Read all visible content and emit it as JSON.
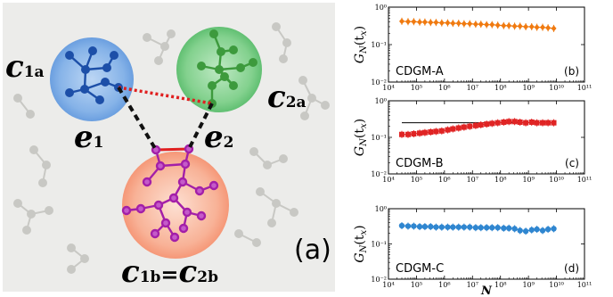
{
  "diagram": {
    "panel_label": "(a)",
    "clusters": {
      "c1a": {
        "base": "c",
        "sub": "1a",
        "color": "#5b9ee0"
      },
      "c2a": {
        "base": "c",
        "sub": "2a",
        "color": "#4cc46a"
      },
      "c1b2b": {
        "base1": "c",
        "sub1": "1b",
        "eq": "=",
        "base2": "c",
        "sub2": "2b",
        "color": "#f4896a"
      }
    },
    "edges": {
      "e1": {
        "base": "e",
        "sub": "1"
      },
      "e2": {
        "base": "e",
        "sub": "2"
      }
    },
    "colors": {
      "blue_node": "#1d4fa8",
      "green_node": "#3d9a3d",
      "purple_node": "#a31fa8",
      "red_link": "#e02020",
      "gray_node": "#c8c8c4",
      "panel_bg": "#ececea"
    }
  },
  "chart_data": [
    {
      "type": "line",
      "title": "CDGM-A",
      "panel_label": "(b)",
      "ylabel_main": "G",
      "ylabel_sub": "N",
      "ylabel_arg": "(t",
      "ylabel_argsub": "x",
      "ylabel_close": ")",
      "xlabel": "",
      "yscale": "log",
      "xscale": "log",
      "xlim": [
        10000.0,
        100000000000.0
      ],
      "ylim": [
        0.01,
        1
      ],
      "color": "#f07a10",
      "marker": "diamond",
      "x": [
        30000.0,
        50000.0,
        80000.0,
        130000.0,
        200000.0,
        320000.0,
        500000.0,
        800000.0,
        1300000.0,
        2000000.0,
        3200000.0,
        5000000.0,
        8000000.0,
        13000000.0,
        20000000.0,
        32000000.0,
        50000000.0,
        80000000.0,
        130000000.0,
        200000000.0,
        320000000.0,
        500000000.0,
        800000000.0,
        1300000000.0,
        2000000000.0,
        3200000000.0,
        5000000000.0,
        8000000000.0
      ],
      "y": [
        0.42,
        0.41,
        0.41,
        0.4,
        0.4,
        0.39,
        0.39,
        0.38,
        0.38,
        0.37,
        0.37,
        0.36,
        0.36,
        0.35,
        0.35,
        0.34,
        0.34,
        0.33,
        0.32,
        0.32,
        0.31,
        0.31,
        0.3,
        0.3,
        0.29,
        0.29,
        0.28,
        0.27
      ],
      "reference_line": null,
      "yticks": [
        "10⁰",
        "10⁻¹",
        "10⁻²"
      ],
      "xticks": [
        "10⁴",
        "10⁵",
        "10⁶",
        "10⁷",
        "10⁸",
        "10⁹",
        "10¹⁰",
        "10¹¹"
      ]
    },
    {
      "type": "line",
      "title": "CDGM-B",
      "panel_label": "(c)",
      "ylabel_main": "G",
      "ylabel_sub": "N",
      "ylabel_arg": "(t",
      "ylabel_argsub": "x",
      "ylabel_close": ")",
      "xlabel": "",
      "yscale": "log",
      "xscale": "log",
      "xlim": [
        10000.0,
        100000000000.0
      ],
      "ylim": [
        0.01,
        1
      ],
      "color": "#e02424",
      "marker": "square",
      "x": [
        30000.0,
        50000.0,
        80000.0,
        130000.0,
        200000.0,
        320000.0,
        500000.0,
        800000.0,
        1300000.0,
        2000000.0,
        3200000.0,
        5000000.0,
        8000000.0,
        13000000.0,
        20000000.0,
        32000000.0,
        50000000.0,
        80000000.0,
        130000000.0,
        200000000.0,
        320000000.0,
        500000000.0,
        800000000.0,
        1300000000.0,
        2000000000.0,
        3200000000.0,
        5000000000.0,
        8000000000.0
      ],
      "y": [
        0.12,
        0.12,
        0.125,
        0.13,
        0.135,
        0.14,
        0.145,
        0.15,
        0.16,
        0.17,
        0.18,
        0.19,
        0.2,
        0.21,
        0.22,
        0.23,
        0.24,
        0.25,
        0.26,
        0.27,
        0.27,
        0.26,
        0.25,
        0.26,
        0.25,
        0.25,
        0.25,
        0.25
      ],
      "reference_line": 0.25,
      "yticks": [
        "10⁰",
        "10⁻¹",
        "10⁻²"
      ],
      "xticks": [
        "10⁴",
        "10⁵",
        "10⁶",
        "10⁷",
        "10⁸",
        "10⁹",
        "10¹⁰",
        "10¹¹"
      ]
    },
    {
      "type": "line",
      "title": "CDGM-C",
      "panel_label": "(d)",
      "ylabel_main": "G",
      "ylabel_sub": "N",
      "ylabel_arg": "(t",
      "ylabel_argsub": "x",
      "ylabel_close": ")",
      "xlabel": "N",
      "yscale": "log",
      "xscale": "log",
      "xlim": [
        10000.0,
        100000000000.0
      ],
      "ylim": [
        0.01,
        1
      ],
      "color": "#2f86d0",
      "marker": "circle",
      "x": [
        30000.0,
        50000.0,
        80000.0,
        130000.0,
        200000.0,
        320000.0,
        500000.0,
        800000.0,
        1300000.0,
        2000000.0,
        3200000.0,
        5000000.0,
        8000000.0,
        13000000.0,
        20000000.0,
        32000000.0,
        50000000.0,
        80000000.0,
        130000000.0,
        200000000.0,
        320000000.0,
        500000000.0,
        800000000.0,
        1300000000.0,
        2000000000.0,
        3200000000.0,
        5000000000.0,
        8000000000.0
      ],
      "y": [
        0.33,
        0.32,
        0.32,
        0.31,
        0.31,
        0.31,
        0.3,
        0.3,
        0.3,
        0.3,
        0.3,
        0.3,
        0.3,
        0.29,
        0.29,
        0.29,
        0.29,
        0.29,
        0.28,
        0.28,
        0.27,
        0.24,
        0.23,
        0.25,
        0.26,
        0.24,
        0.26,
        0.27
      ],
      "reference_line": null,
      "yticks": [
        "10⁰",
        "10⁻¹",
        "10⁻²"
      ],
      "xticks": [
        "10⁴",
        "10⁵",
        "10⁶",
        "10⁷",
        "10⁸",
        "10⁹",
        "10¹⁰",
        "10¹¹"
      ]
    }
  ]
}
